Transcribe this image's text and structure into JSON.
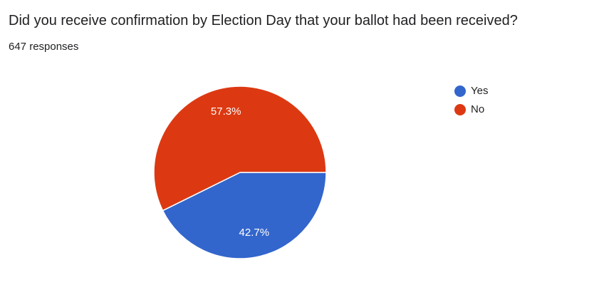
{
  "chart_data": {
    "type": "pie",
    "title": "Did you receive confirmation by Election Day that your ballot had been received?",
    "subtitle": "647 responses",
    "categories": [
      "Yes",
      "No"
    ],
    "values": [
      42.7,
      57.3
    ],
    "value_labels": [
      "42.7%",
      "57.3%"
    ],
    "colors": [
      "#3366cc",
      "#dc3912"
    ],
    "legend": "right"
  }
}
